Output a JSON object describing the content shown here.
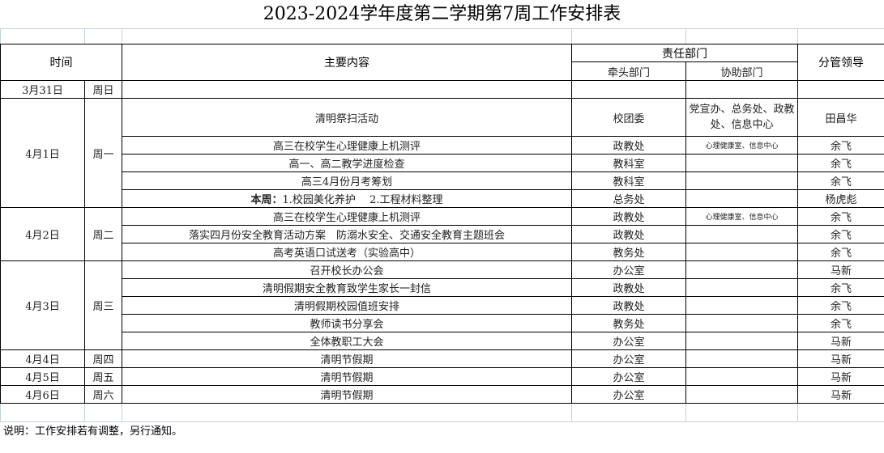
{
  "title": "2023-2024学年度第二学期第7周工作安排表",
  "headers": {
    "time": "时间",
    "content": "主要内容",
    "dept": "责任部门",
    "lead_dept": "牵头部门",
    "assist_dept": "协助部门",
    "leader": "分管领导"
  },
  "days": [
    {
      "date": "3月31日",
      "weekday": "周日",
      "items": [
        {
          "content": "",
          "lead": "",
          "assist": "",
          "leader": ""
        }
      ]
    },
    {
      "date": "4月1日",
      "weekday": "周一",
      "items": [
        {
          "content": "清明祭扫活动",
          "lead": "校团委",
          "assist": "党宣办、总务处、政教处、信息中心",
          "leader": "田昌华"
        },
        {
          "content": "高三在校学生心理健康上机测评",
          "lead": "政教处",
          "assist": "心理健康室、信息中心",
          "leader": "余飞"
        },
        {
          "content": "高一、高二教学进度检查",
          "lead": "教科室",
          "assist": "",
          "leader": "余飞"
        },
        {
          "content": "高三4月份月考筹划",
          "lead": "教科室",
          "assist": "",
          "leader": "余飞"
        },
        {
          "bold_prefix": "本周：",
          "content": "1.校园美化养护　 2.工程材料整理",
          "lead": "总务处",
          "assist": "",
          "leader": "杨虎彪"
        }
      ]
    },
    {
      "date": "4月2日",
      "weekday": "周二",
      "items": [
        {
          "content": "高三在校学生心理健康上机测评",
          "lead": "政教处",
          "assist": "心理健康室、信息中心",
          "leader": "余飞"
        },
        {
          "content": "落实四月份安全教育活动方案　防溺水安全、交通安全教育主题班会",
          "lead": "政教处",
          "assist": "",
          "leader": "余飞"
        },
        {
          "content": "高考英语口试送考（实验高中）",
          "lead": "教务处",
          "assist": "",
          "leader": "余飞"
        }
      ]
    },
    {
      "date": "4月3日",
      "weekday": "周三",
      "items": [
        {
          "content": "召开校长办公会",
          "lead": "办公室",
          "assist": "",
          "leader": "马新"
        },
        {
          "content": "清明假期安全教育致学生家长一封信",
          "lead": "政教处",
          "assist": "",
          "leader": "余飞"
        },
        {
          "content": "清明假期校园值班安排",
          "lead": "政教处",
          "assist": "",
          "leader": "余飞"
        },
        {
          "content": "教师读书分享会",
          "lead": "教务处",
          "assist": "",
          "leader": "余飞"
        },
        {
          "content": "全体教职工大会",
          "lead": "办公室",
          "assist": "",
          "leader": "马新"
        }
      ]
    },
    {
      "date": "4月4日",
      "weekday": "周四",
      "items": [
        {
          "content": "清明节假期",
          "lead": "办公室",
          "assist": "",
          "leader": "马新"
        }
      ]
    },
    {
      "date": "4月5日",
      "weekday": "周五",
      "items": [
        {
          "content": "清明节假期",
          "lead": "办公室",
          "assist": "",
          "leader": "马新"
        }
      ]
    },
    {
      "date": "4月6日",
      "weekday": "周六",
      "items": [
        {
          "content": "清明节假期",
          "lead": "办公室",
          "assist": "",
          "leader": "马新"
        }
      ]
    }
  ],
  "note": "说明：工作安排若有调整，另行通知。"
}
